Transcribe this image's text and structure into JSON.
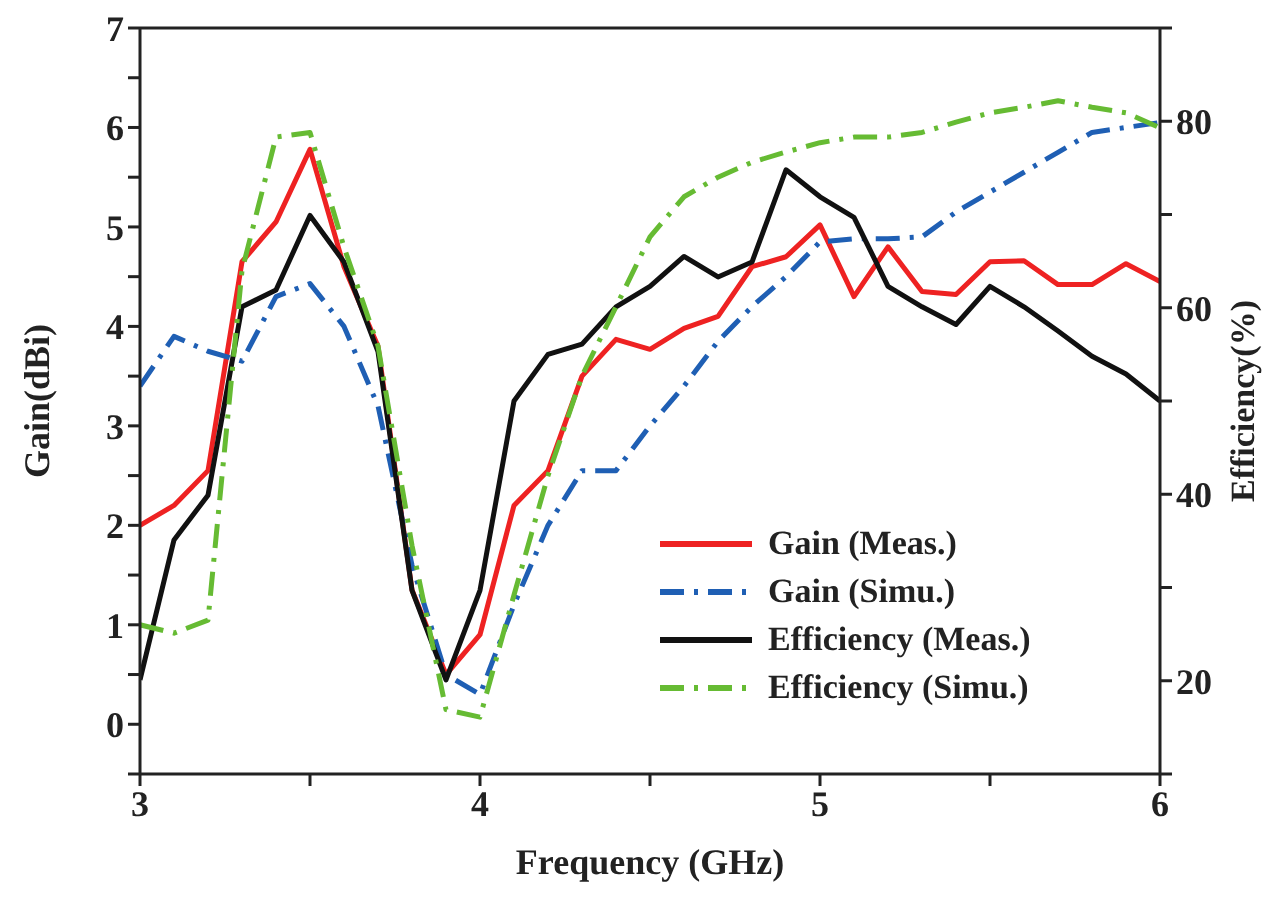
{
  "chart_data": {
    "type": "line",
    "xlabel": "Frequency (GHz)",
    "ylabel": "Gain(dBi)",
    "y2label": "Efficiency(%)",
    "x": [
      3.0,
      3.1,
      3.2,
      3.3,
      3.4,
      3.5,
      3.6,
      3.7,
      3.8,
      3.9,
      4.0,
      4.1,
      4.2,
      4.3,
      4.4,
      4.5,
      4.6,
      4.7,
      4.8,
      4.9,
      5.0,
      5.1,
      5.2,
      5.3,
      5.4,
      5.5,
      5.6,
      5.7,
      5.8,
      5.9,
      6.0
    ],
    "series": [
      {
        "name": "Gain (Meas.)",
        "color": "#ee2222",
        "line_style": "solid",
        "values": [
          2.0,
          2.2,
          2.55,
          4.65,
          5.05,
          5.78,
          4.6,
          3.8,
          1.35,
          0.5,
          0.9,
          2.2,
          2.55,
          3.5,
          3.87,
          3.77,
          3.98,
          4.1,
          4.6,
          4.7,
          5.02,
          4.3,
          4.8,
          4.35,
          4.32,
          4.65,
          4.66,
          4.42,
          4.42,
          4.63,
          4.45
        ]
      },
      {
        "name": "Gain (Simu.)",
        "color": "#1f5fb4",
        "line_style": "dashed",
        "values": [
          3.4,
          3.9,
          3.75,
          3.65,
          4.3,
          4.43,
          4.0,
          3.2,
          1.6,
          0.5,
          0.3,
          1.2,
          2.0,
          2.55,
          2.55,
          3.0,
          3.4,
          3.85,
          4.2,
          4.5,
          4.85,
          4.88,
          4.88,
          4.9,
          5.15,
          5.35,
          5.55,
          5.75,
          5.95,
          6.0,
          6.05
        ]
      },
      {
        "name": "Efficiency (Meas.)",
        "color": "#111111",
        "line_style": "solid",
        "axis": "y2",
        "values": [
          20.1,
          35.1,
          39.9,
          60.1,
          61.9,
          69.9,
          64.9,
          55.3,
          29.7,
          20.1,
          29.7,
          50,
          55,
          56.1,
          60.1,
          62.3,
          65.5,
          63.3,
          64.9,
          74.8,
          71.9,
          69.7,
          62.3,
          60.1,
          58.2,
          62.3,
          60.1,
          57.5,
          54.8,
          52.9,
          50
        ]
      },
      {
        "name": "Efficiency (Simu.)",
        "color": "#66bb33",
        "line_style": "dashed",
        "axis": "y2",
        "values": [
          26,
          25.1,
          26.5,
          64,
          78.3,
          78.8,
          66.5,
          55.9,
          34.5,
          16.9,
          16.1,
          29.2,
          42,
          52.7,
          60.1,
          67.6,
          71.9,
          74,
          75.6,
          76.7,
          77.7,
          78.3,
          78.3,
          78.8,
          79.9,
          80.9,
          81.5,
          82.2,
          81.5,
          80.9,
          79.3
        ]
      }
    ],
    "xlim": [
      3,
      6
    ],
    "xticks": [
      3,
      {
        "value": 3.5,
        "label": null
      },
      4,
      {
        "value": 4.5,
        "label": null
      },
      5,
      {
        "value": 5.5,
        "label": null
      },
      6
    ],
    "ylim": [
      -0.5,
      7
    ],
    "yticks": [
      {
        "value": -0.5,
        "label": null
      },
      0,
      {
        "value": 0.5,
        "label": null
      },
      1,
      {
        "value": 1.5,
        "label": null
      },
      2,
      {
        "value": 2.5,
        "label": null
      },
      3,
      {
        "value": 3.5,
        "label": null
      },
      4,
      {
        "value": 4.5,
        "label": null
      },
      5,
      {
        "value": 5.5,
        "label": null
      },
      6,
      {
        "value": 6.5,
        "label": null
      },
      7
    ],
    "y2lim": [
      10,
      90
    ],
    "y2ticks": [
      {
        "value": 10,
        "label": null
      },
      20,
      {
        "value": 30,
        "label": null
      },
      40,
      {
        "value": 50,
        "label": null
      },
      60,
      {
        "value": 70,
        "label": null
      },
      80,
      {
        "value": 90,
        "label": null
      }
    ],
    "grid": false,
    "legend": "bottom right",
    "marker": "none"
  }
}
